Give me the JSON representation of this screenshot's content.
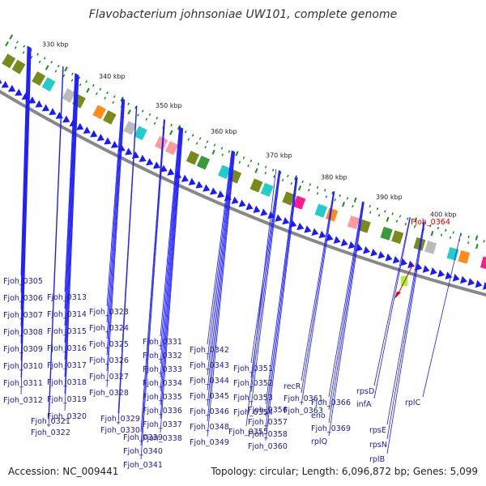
{
  "title": "Flavobacterium johnsoniae UW101, complete genome",
  "footer": {
    "accession": "Accession: NC_009441",
    "summary": "Topology: circular; Length: 6,096,872 bp; Genes: 5,099"
  },
  "colors": {
    "backbone": "#888888",
    "cds_arrow": "#1a1aff",
    "gene_label": "#1a1a99",
    "highlight_label": "#dd0000",
    "highlight_gene": "#99ff33",
    "tick": "#1a8a1a",
    "cog_olive": "#7a8a1a",
    "cog_green": "#3a9a3a",
    "cog_cyan": "#22cccc",
    "cog_orange": "#ff8c1a",
    "cog_magenta": "#ff1a8c",
    "cog_pink": "#ff9a9a",
    "cog_grey": "#bbbbbb"
  },
  "kbp_ticks": [
    "330 kbp",
    "340 kbp",
    "350 kbp",
    "360 kbp",
    "370 kbp",
    "380 kbp",
    "390 kbp",
    "400 kbp"
  ],
  "genes": [
    "Fjoh_0305",
    "Fjoh_0306",
    "Fjoh_0307",
    "Fjoh_0308",
    "Fjoh_0309",
    "Fjoh_0310",
    "Fjoh_0311",
    "Fjoh_0312",
    "Fjoh_0313",
    "Fjoh_0314",
    "Fjoh_0315",
    "Fjoh_0316",
    "Fjoh_0317",
    "Fjoh_0318",
    "Fjoh_0319",
    "Fjoh_0320",
    "Fjoh_0321",
    "Fjoh_0322",
    "Fjoh_0323",
    "Fjoh_0324",
    "Fjoh_0325",
    "Fjoh_0326",
    "Fjoh_0327",
    "Fjoh_0328",
    "Fjoh_0329",
    "Fjoh_0330",
    "Fjoh_0331",
    "Fjoh_0332",
    "Fjoh_0333",
    "Fjoh_0334",
    "Fjoh_0335",
    "Fjoh_0336",
    "Fjoh_0337",
    "Fjoh_0338",
    "Fjoh_0339",
    "Fjoh_0340",
    "Fjoh_0341",
    "Fjoh_0342",
    "Fjoh_0343",
    "Fjoh_0344",
    "Fjoh_0345",
    "Fjoh_0346",
    "Fjoh_0348",
    "Fjoh_0349",
    "Fjoh_0351",
    "Fjoh_0352",
    "Fjoh_0353",
    "Fjoh_0354",
    "Fjoh_0355",
    "Fjoh_0356",
    "Fjoh_0357",
    "Fjoh_0358",
    "Fjoh_0360",
    "recR",
    "Fjoh_0361",
    "Fjoh_0363",
    "Fjoh_0366",
    "eno",
    "Fjoh_0369",
    "rplQ",
    "rpsD",
    "infA",
    "rpsE",
    "rpsN",
    "rplB",
    "rplC"
  ],
  "highlighted_gene": "Fjoh_0364"
}
